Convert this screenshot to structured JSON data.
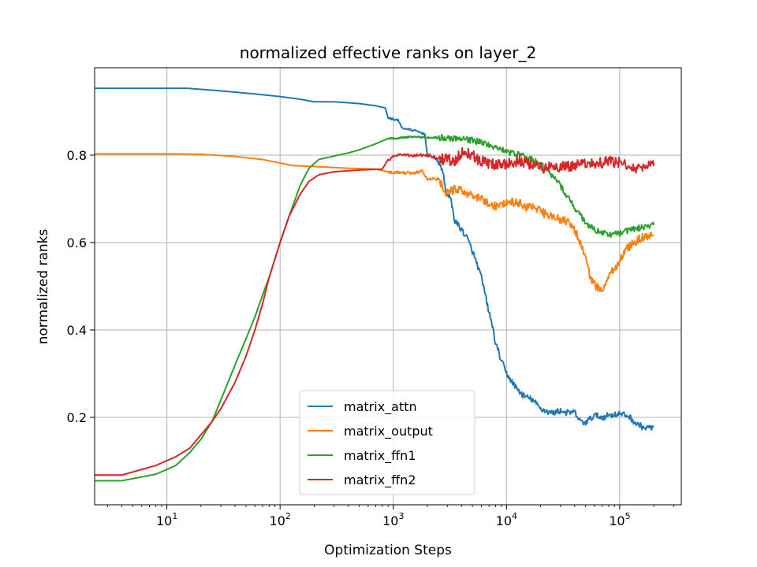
{
  "chart_data": {
    "type": "line",
    "title": "normalized effective ranks on layer_2",
    "xlabel": "Optimization Steps",
    "ylabel": "normalized ranks",
    "xscale": "log",
    "xlim": [
      2.3,
      350000
    ],
    "ylim": [
      0.0,
      1.0
    ],
    "grid": true,
    "legend_position": "bottom-center",
    "x_ticks": [
      {
        "value": 10,
        "base": "10",
        "exp": "1"
      },
      {
        "value": 100,
        "base": "10",
        "exp": "2"
      },
      {
        "value": 1000,
        "base": "10",
        "exp": "3"
      },
      {
        "value": 10000,
        "base": "10",
        "exp": "4"
      },
      {
        "value": 100000,
        "base": "10",
        "exp": "5"
      }
    ],
    "y_ticks": [
      {
        "value": 0.2,
        "label": "0.2"
      },
      {
        "value": 0.4,
        "label": "0.4"
      },
      {
        "value": 0.6,
        "label": "0.6"
      },
      {
        "value": 0.8,
        "label": "0.8"
      }
    ],
    "series": [
      {
        "name": "matrix_attn",
        "color": "#1f77b4",
        "points": [
          [
            2.3,
            0.953
          ],
          [
            10,
            0.953
          ],
          [
            15,
            0.953
          ],
          [
            30,
            0.947
          ],
          [
            60,
            0.94
          ],
          [
            100,
            0.934
          ],
          [
            150,
            0.928
          ],
          [
            200,
            0.922
          ],
          [
            300,
            0.922
          ],
          [
            500,
            0.918
          ],
          [
            700,
            0.913
          ],
          [
            850,
            0.908
          ],
          [
            900,
            0.885
          ],
          [
            1100,
            0.88
          ],
          [
            1200,
            0.862
          ],
          [
            1600,
            0.855
          ],
          [
            1900,
            0.848
          ],
          [
            2000,
            0.8
          ],
          [
            2100,
            0.8
          ],
          [
            2400,
            0.79
          ],
          [
            2700,
            0.77
          ],
          [
            2900,
            0.72
          ],
          [
            3200,
            0.7
          ],
          [
            3500,
            0.65
          ],
          [
            4000,
            0.63
          ],
          [
            4500,
            0.61
          ],
          [
            5000,
            0.58
          ],
          [
            5500,
            0.55
          ],
          [
            6000,
            0.52
          ],
          [
            6500,
            0.48
          ],
          [
            7000,
            0.44
          ],
          [
            7500,
            0.41
          ],
          [
            8000,
            0.37
          ],
          [
            9000,
            0.33
          ],
          [
            10000,
            0.3
          ],
          [
            12000,
            0.27
          ],
          [
            14000,
            0.25
          ],
          [
            17000,
            0.24
          ],
          [
            20000,
            0.22
          ],
          [
            25000,
            0.21
          ],
          [
            30000,
            0.215
          ],
          [
            35000,
            0.21
          ],
          [
            40000,
            0.212
          ],
          [
            45000,
            0.19
          ],
          [
            50000,
            0.188
          ],
          [
            60000,
            0.205
          ],
          [
            70000,
            0.2
          ],
          [
            80000,
            0.205
          ],
          [
            100000,
            0.208
          ],
          [
            120000,
            0.203
          ],
          [
            140000,
            0.185
          ],
          [
            170000,
            0.175
          ],
          [
            200000,
            0.178
          ]
        ],
        "noise": 0.007
      },
      {
        "name": "matrix_output",
        "color": "#ff7f0e",
        "points": [
          [
            2.3,
            0.803
          ],
          [
            10,
            0.803
          ],
          [
            20,
            0.802
          ],
          [
            40,
            0.797
          ],
          [
            70,
            0.79
          ],
          [
            100,
            0.782
          ],
          [
            130,
            0.776
          ],
          [
            200,
            0.774
          ],
          [
            400,
            0.77
          ],
          [
            700,
            0.768
          ],
          [
            900,
            0.762
          ],
          [
            1200,
            0.76
          ],
          [
            1500,
            0.758
          ],
          [
            1800,
            0.764
          ],
          [
            2000,
            0.745
          ],
          [
            2500,
            0.746
          ],
          [
            2900,
            0.714
          ],
          [
            3200,
            0.718
          ],
          [
            4000,
            0.724
          ],
          [
            4500,
            0.712
          ],
          [
            5000,
            0.704
          ],
          [
            6000,
            0.7
          ],
          [
            7000,
            0.69
          ],
          [
            8000,
            0.684
          ],
          [
            10000,
            0.69
          ],
          [
            12000,
            0.694
          ],
          [
            15000,
            0.682
          ],
          [
            18000,
            0.68
          ],
          [
            20000,
            0.67
          ],
          [
            25000,
            0.66
          ],
          [
            30000,
            0.652
          ],
          [
            35000,
            0.646
          ],
          [
            40000,
            0.63
          ],
          [
            45000,
            0.6
          ],
          [
            50000,
            0.56
          ],
          [
            55000,
            0.52
          ],
          [
            60000,
            0.505
          ],
          [
            65000,
            0.495
          ],
          [
            70000,
            0.49
          ],
          [
            80000,
            0.52
          ],
          [
            100000,
            0.56
          ],
          [
            120000,
            0.59
          ],
          [
            150000,
            0.61
          ],
          [
            200000,
            0.615
          ]
        ],
        "noise": 0.01
      },
      {
        "name": "matrix_ffn1",
        "color": "#2ca02c",
        "points": [
          [
            2.3,
            0.055
          ],
          [
            4,
            0.055
          ],
          [
            8,
            0.07
          ],
          [
            12,
            0.09
          ],
          [
            16,
            0.12
          ],
          [
            20,
            0.15
          ],
          [
            25,
            0.19
          ],
          [
            30,
            0.24
          ],
          [
            40,
            0.32
          ],
          [
            50,
            0.38
          ],
          [
            60,
            0.43
          ],
          [
            70,
            0.48
          ],
          [
            80,
            0.52
          ],
          [
            100,
            0.6
          ],
          [
            120,
            0.66
          ],
          [
            150,
            0.73
          ],
          [
            180,
            0.77
          ],
          [
            220,
            0.79
          ],
          [
            300,
            0.798
          ],
          [
            400,
            0.805
          ],
          [
            500,
            0.812
          ],
          [
            700,
            0.826
          ],
          [
            900,
            0.838
          ],
          [
            1200,
            0.84
          ],
          [
            1500,
            0.842
          ],
          [
            2000,
            0.84
          ],
          [
            3000,
            0.84
          ],
          [
            4000,
            0.838
          ],
          [
            6000,
            0.83
          ],
          [
            8000,
            0.818
          ],
          [
            10000,
            0.808
          ],
          [
            15000,
            0.796
          ],
          [
            20000,
            0.78
          ],
          [
            25000,
            0.755
          ],
          [
            30000,
            0.73
          ],
          [
            40000,
            0.68
          ],
          [
            50000,
            0.645
          ],
          [
            60000,
            0.63
          ],
          [
            70000,
            0.622
          ],
          [
            80000,
            0.618
          ],
          [
            100000,
            0.62
          ],
          [
            120000,
            0.628
          ],
          [
            150000,
            0.634
          ],
          [
            200000,
            0.64
          ]
        ],
        "noise": 0.007
      },
      {
        "name": "matrix_ffn2",
        "color": "#d62728",
        "points": [
          [
            2.3,
            0.068
          ],
          [
            4,
            0.068
          ],
          [
            8,
            0.09
          ],
          [
            12,
            0.11
          ],
          [
            16,
            0.13
          ],
          [
            20,
            0.16
          ],
          [
            25,
            0.19
          ],
          [
            30,
            0.22
          ],
          [
            40,
            0.28
          ],
          [
            50,
            0.34
          ],
          [
            60,
            0.4
          ],
          [
            70,
            0.46
          ],
          [
            80,
            0.52
          ],
          [
            100,
            0.6
          ],
          [
            120,
            0.66
          ],
          [
            150,
            0.71
          ],
          [
            180,
            0.74
          ],
          [
            220,
            0.755
          ],
          [
            300,
            0.762
          ],
          [
            500,
            0.766
          ],
          [
            800,
            0.768
          ],
          [
            900,
            0.79
          ],
          [
            1100,
            0.8
          ],
          [
            2000,
            0.8
          ],
          [
            2500,
            0.792
          ],
          [
            3000,
            0.79
          ],
          [
            3500,
            0.788
          ],
          [
            4000,
            0.805
          ],
          [
            5000,
            0.8
          ],
          [
            6000,
            0.785
          ],
          [
            8000,
            0.778
          ],
          [
            10000,
            0.78
          ],
          [
            12000,
            0.786
          ],
          [
            15000,
            0.784
          ],
          [
            20000,
            0.772
          ],
          [
            30000,
            0.772
          ],
          [
            40000,
            0.776
          ],
          [
            60000,
            0.782
          ],
          [
            80000,
            0.785
          ],
          [
            100000,
            0.782
          ],
          [
            150000,
            0.77
          ],
          [
            200000,
            0.775
          ]
        ],
        "noise": 0.013
      }
    ]
  }
}
